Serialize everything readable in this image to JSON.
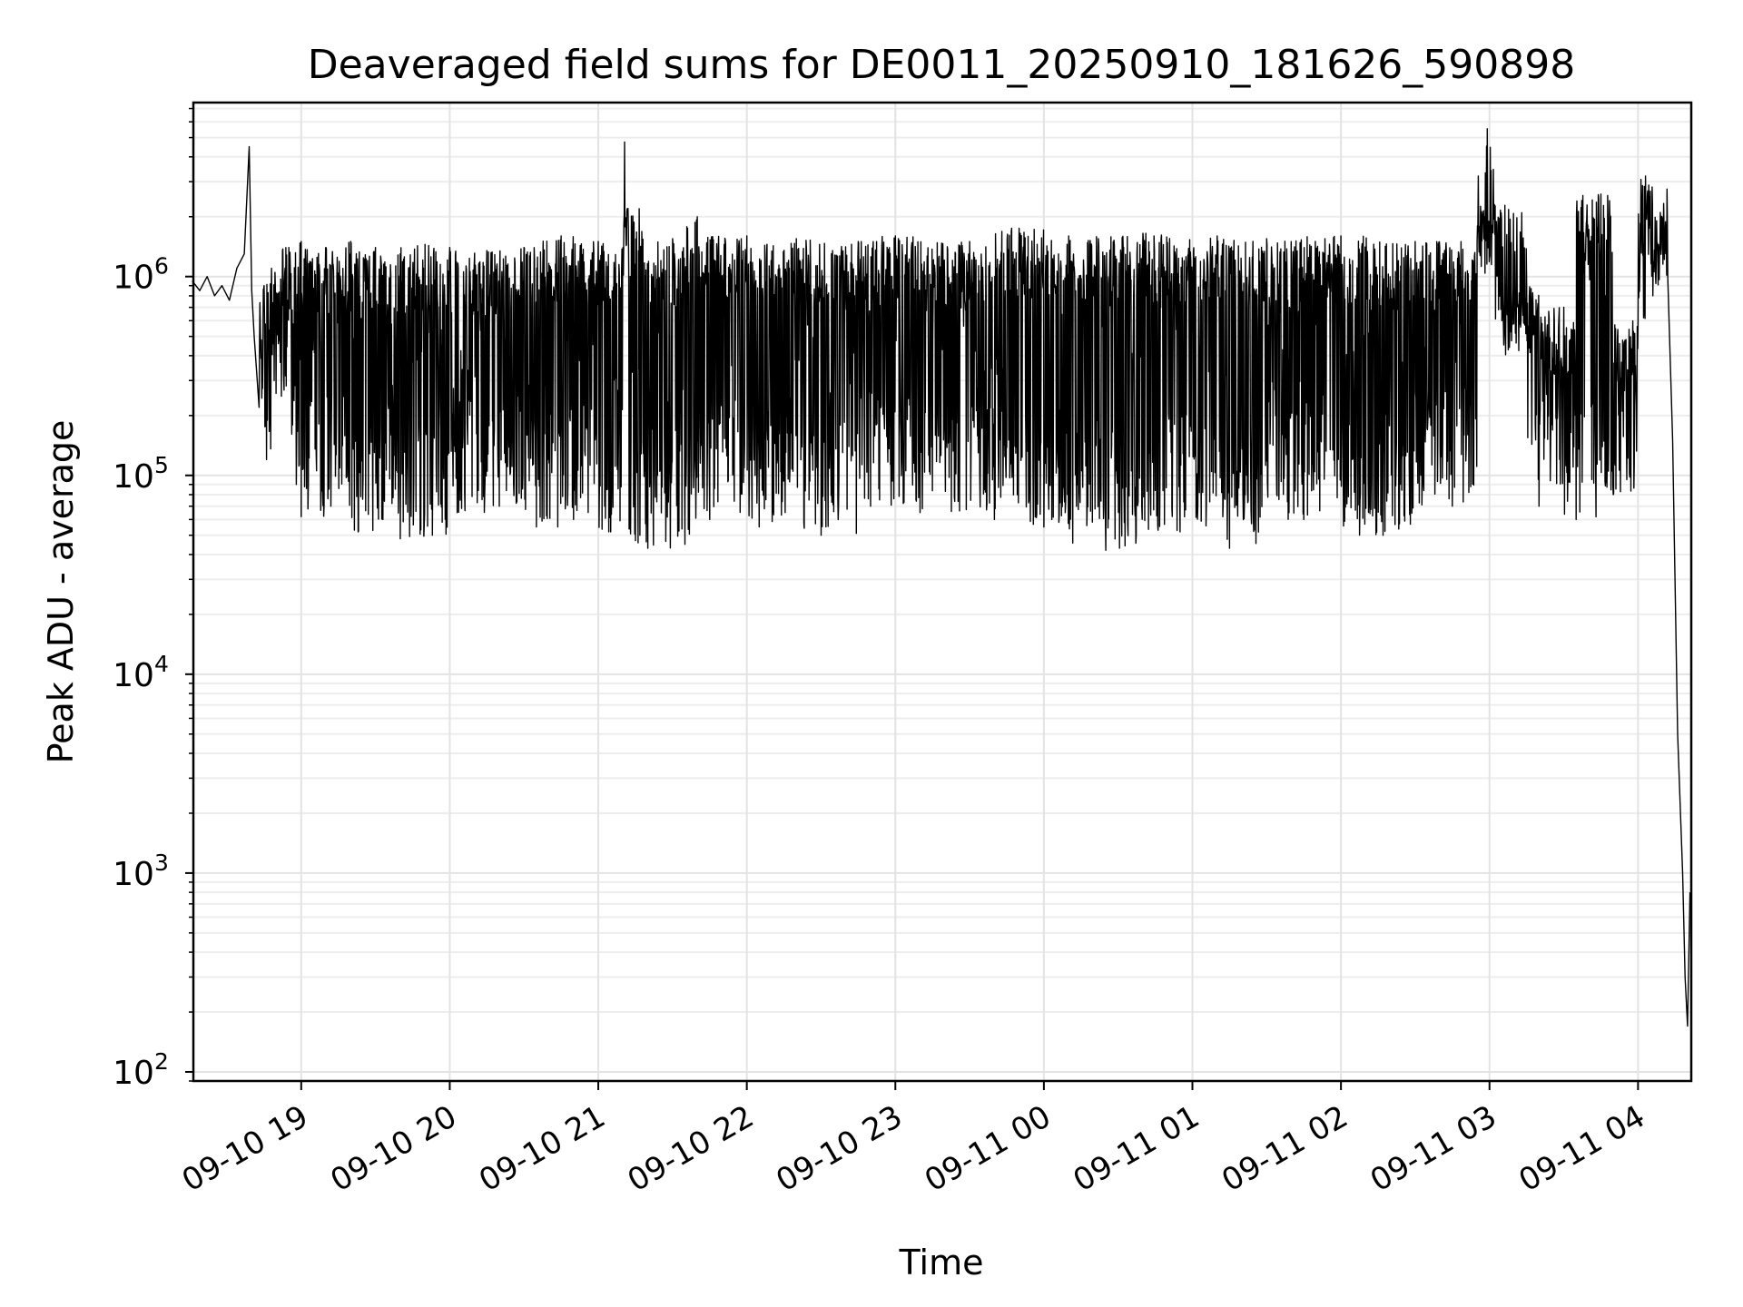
{
  "chart_data": {
    "type": "line",
    "title": "Deaveraged field sums for DE0011_20250910_181626_590898",
    "xlabel": "Time",
    "ylabel": "Peak ADU - average",
    "y_scale": "log",
    "ylim": [
      90,
      7500000
    ],
    "xlim": [
      "2025-09-10 18:16:26",
      "2025-09-11 04:21:30"
    ],
    "grid": true,
    "x_ticks": [
      {
        "t": "2025-09-10 19:00",
        "label": "09-10 19"
      },
      {
        "t": "2025-09-10 20:00",
        "label": "09-10 20"
      },
      {
        "t": "2025-09-10 21:00",
        "label": "09-10 21"
      },
      {
        "t": "2025-09-10 22:00",
        "label": "09-10 22"
      },
      {
        "t": "2025-09-10 23:00",
        "label": "09-10 23"
      },
      {
        "t": "2025-09-11 00:00",
        "label": "09-11 00"
      },
      {
        "t": "2025-09-11 01:00",
        "label": "09-11 01"
      },
      {
        "t": "2025-09-11 02:00",
        "label": "09-11 02"
      },
      {
        "t": "2025-09-11 03:00",
        "label": "09-11 03"
      },
      {
        "t": "2025-09-11 04:00",
        "label": "09-11 04"
      }
    ],
    "y_ticks": [
      {
        "value": 100,
        "base": "10",
        "exp": "2"
      },
      {
        "value": 1000,
        "base": "10",
        "exp": "3"
      },
      {
        "value": 10000,
        "base": "10",
        "exp": "4"
      },
      {
        "value": 100000,
        "base": "10",
        "exp": "5"
      },
      {
        "value": 1000000,
        "base": "10",
        "exp": "6"
      }
    ],
    "series": [
      {
        "color": "#000000",
        "points": [
          [
            "2025-09-10 18:16",
            950000
          ],
          [
            "2025-09-10 18:19",
            850000
          ],
          [
            "2025-09-10 18:22",
            1000000
          ],
          [
            "2025-09-10 18:25",
            800000
          ],
          [
            "2025-09-10 18:28",
            900000
          ],
          [
            "2025-09-10 18:31",
            760000
          ],
          [
            "2025-09-10 18:34",
            1100000
          ],
          [
            "2025-09-10 18:37",
            1300000
          ],
          [
            "2025-09-10 18:39",
            4500000
          ],
          [
            "2025-09-10 18:40",
            850000
          ],
          [
            "2025-09-10 18:41",
            500000
          ],
          [
            "2025-09-10 18:43",
            220000
          ],
          [
            "2025-09-10 18:45",
            900000
          ],
          [
            "2025-09-10 18:46",
            120000
          ],
          [
            "2025-09-10 18:48",
            1100000
          ],
          [
            "2025-09-10 18:52",
            250000
          ],
          [
            "2025-09-10 18:55",
            1400000
          ],
          [
            "2025-09-10 18:58",
            90000
          ],
          [
            "2025-09-10 19:00",
            1500000
          ],
          [
            "2025-09-10 19:00",
            62000
          ],
          [
            "2025-09-10 19:10",
            1400000
          ],
          [
            "2025-09-10 19:12",
            70000
          ],
          [
            "2025-09-10 19:20",
            1500000
          ],
          [
            "2025-09-10 19:23",
            52000
          ],
          [
            "2025-09-10 19:30",
            1400000
          ],
          [
            "2025-09-10 19:33",
            60000
          ],
          [
            "2025-09-10 19:40",
            1300000
          ],
          [
            "2025-09-10 19:40",
            48000
          ],
          [
            "2025-09-10 19:50",
            1450000
          ],
          [
            "2025-09-10 19:53",
            50000
          ],
          [
            "2025-09-10 20:00",
            1400000
          ],
          [
            "2025-09-10 20:03",
            65000
          ],
          [
            "2025-09-10 20:15",
            1350000
          ],
          [
            "2025-09-10 20:20",
            70000
          ],
          [
            "2025-09-10 20:30",
            1400000
          ],
          [
            "2025-09-10 20:35",
            55000
          ],
          [
            "2025-09-10 20:45",
            1600000
          ],
          [
            "2025-09-10 20:50",
            60000
          ],
          [
            "2025-09-10 21:00",
            1500000
          ],
          [
            "2025-09-10 21:05",
            52000
          ],
          [
            "2025-09-10 21:10",
            1400000
          ],
          [
            "2025-09-10 21:12",
            2200000
          ],
          [
            "2025-09-10 21:20",
            43000
          ],
          [
            "2025-09-10 21:30",
            1550000
          ],
          [
            "2025-09-10 21:35",
            45000
          ],
          [
            "2025-09-10 21:40",
            2000000
          ],
          [
            "2025-09-10 21:45",
            60000
          ],
          [
            "2025-09-10 22:00",
            1600000
          ],
          [
            "2025-09-10 22:05",
            55000
          ],
          [
            "2025-09-10 22:20",
            1550000
          ],
          [
            "2025-09-10 22:30",
            50000
          ],
          [
            "2025-09-10 22:45",
            1500000
          ],
          [
            "2025-09-10 22:50",
            70000
          ],
          [
            "2025-09-10 23:00",
            1600000
          ],
          [
            "2025-09-10 23:10",
            65000
          ],
          [
            "2025-09-10 23:30",
            1500000
          ],
          [
            "2025-09-10 23:40",
            60000
          ],
          [
            "2025-09-10 23:50",
            1750000
          ],
          [
            "2025-09-11 00:00",
            55000
          ],
          [
            "2025-09-11 00:10",
            1600000
          ],
          [
            "2025-09-11 00:25",
            42000
          ],
          [
            "2025-09-11 00:40",
            1650000
          ],
          [
            "2025-09-11 00:55",
            52000
          ],
          [
            "2025-09-11 01:10",
            1600000
          ],
          [
            "2025-09-11 01:15",
            43000
          ],
          [
            "2025-09-11 01:30",
            1550000
          ],
          [
            "2025-09-11 01:45",
            60000
          ],
          [
            "2025-09-11 02:00",
            1600000
          ],
          [
            "2025-09-11 02:17",
            50000
          ],
          [
            "2025-09-11 02:30",
            1500000
          ],
          [
            "2025-09-11 02:45",
            70000
          ],
          [
            "2025-09-11 02:55",
            1500000
          ],
          [
            "2025-09-11 03:02",
            2300000
          ],
          [
            "2025-09-11 03:05",
            600000
          ],
          [
            "2025-09-11 03:15",
            900000
          ],
          [
            "2025-09-11 03:20",
            70000
          ],
          [
            "2025-09-11 03:30",
            700000
          ],
          [
            "2025-09-11 03:35",
            60000
          ],
          [
            "2025-09-11 03:45",
            2600000
          ],
          [
            "2025-09-11 03:50",
            80000
          ],
          [
            "2025-09-11 04:00",
            600000
          ],
          [
            "2025-09-11 04:03",
            3200000
          ],
          [
            "2025-09-11 04:06",
            800000
          ],
          [
            "2025-09-11 04:09",
            2100000
          ],
          [
            "2025-09-11 04:12",
            1000000
          ],
          [
            "2025-09-11 04:14",
            150000
          ],
          [
            "2025-09-11 04:16",
            5000
          ],
          [
            "2025-09-11 04:18",
            1000
          ],
          [
            "2025-09-11 04:19",
            300
          ],
          [
            "2025-09-11 04:20",
            170
          ],
          [
            "2025-09-11 04:21",
            800
          ]
        ]
      }
    ]
  }
}
